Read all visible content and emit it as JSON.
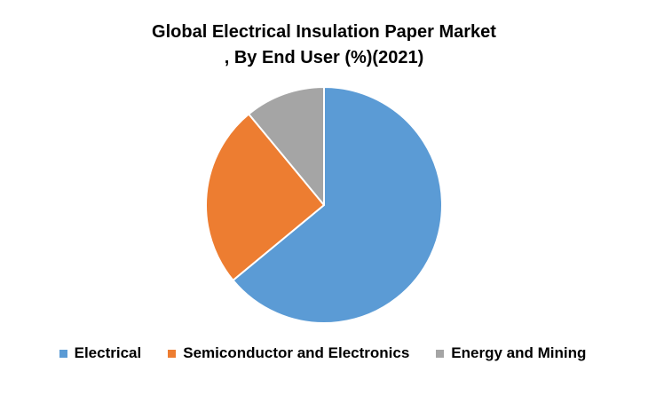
{
  "chart_data": {
    "type": "pie",
    "title_lines": [
      "Global Electrical Insulation Paper Market",
      ", By End User (%)(2021)"
    ],
    "categories": [
      "Electrical",
      "Semiconductor and Electronics",
      "Energy and Mining"
    ],
    "values": [
      64,
      25,
      11
    ],
    "colors": [
      "#5b9bd5",
      "#ed7d31",
      "#a5a5a5"
    ],
    "legend_position": "bottom"
  }
}
